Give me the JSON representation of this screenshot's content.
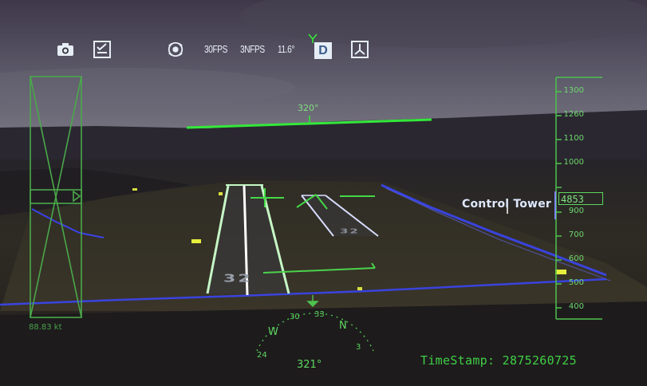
{
  "toolbar": {
    "icons": [
      "camera-icon",
      "checklist-icon",
      "lion-logo-icon",
      "compass-mode-icon"
    ],
    "fps_primary": "30FPS",
    "fps_secondary": "3NFPS",
    "value_reading": "11.6°",
    "mode_badge": "D"
  },
  "heading": {
    "top_label": "320°",
    "bottom_label": "321°",
    "compass": {
      "w": "W",
      "n": "N",
      "t30": "30",
      "t33": "33",
      "t24": "24",
      "t3": "3"
    }
  },
  "altitude_tape": {
    "ticks": [
      "1300",
      "1260",
      "1100",
      "1000",
      "900",
      "700",
      "600",
      "500",
      "400"
    ],
    "current": "4853"
  },
  "speed": {
    "readout": "88.83 kt"
  },
  "overlay": {
    "target_label": "Control Tower",
    "timestamp": "TimeStamp: 2875260725"
  },
  "runway": {
    "primary_number": "32",
    "secondary_number": "32"
  },
  "colors": {
    "hud_green": "#5cd65c",
    "bright_green": "#33e83a",
    "sky_top": "#3c3647",
    "sky_bottom": "#6c6a7a",
    "ground": "#2d2a22",
    "taxi_blue": "#3b46ff"
  }
}
